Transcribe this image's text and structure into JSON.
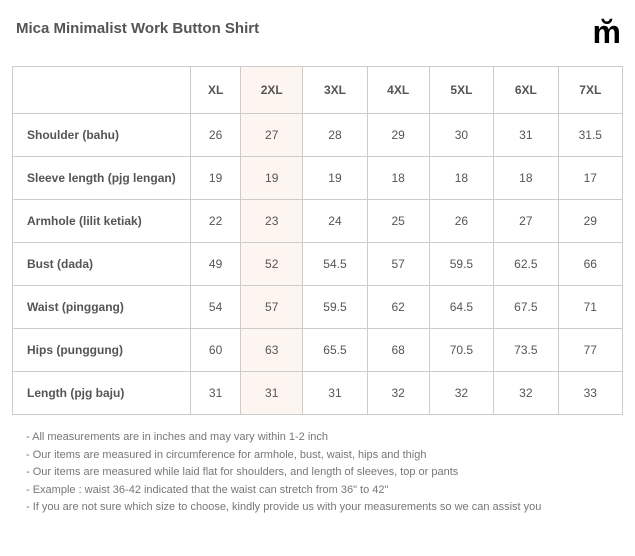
{
  "title": "Mica Minimalist Work Button Shirt",
  "logo": "m̆",
  "table": {
    "sizes": [
      "XL",
      "2XL",
      "3XL",
      "4XL",
      "5XL",
      "6XL",
      "7XL"
    ],
    "highlight_column_index": 1,
    "rows": [
      {
        "label": "Shoulder (bahu)",
        "values": [
          "26",
          "27",
          "28",
          "29",
          "30",
          "31",
          "31.5"
        ]
      },
      {
        "label": "Sleeve length (pjg lengan)",
        "values": [
          "19",
          "19",
          "19",
          "18",
          "18",
          "18",
          "17"
        ]
      },
      {
        "label": "Armhole (lilit ketiak)",
        "values": [
          "22",
          "23",
          "24",
          "25",
          "26",
          "27",
          "29"
        ]
      },
      {
        "label": "Bust (dada)",
        "values": [
          "49",
          "52",
          "54.5",
          "57",
          "59.5",
          "62.5",
          "66"
        ]
      },
      {
        "label": "Waist (pinggang)",
        "values": [
          "54",
          "57",
          "59.5",
          "62",
          "64.5",
          "67.5",
          "71"
        ]
      },
      {
        "label": "Hips (punggung)",
        "values": [
          "60",
          "63",
          "65.5",
          "68",
          "70.5",
          "73.5",
          "77"
        ]
      },
      {
        "label": "Length (pjg baju)",
        "values": [
          "31",
          "31",
          "31",
          "32",
          "32",
          "32",
          "33"
        ]
      }
    ]
  },
  "notes": [
    "- All measurements are in inches and may vary within 1-2 inch",
    "- Our items are measured in circumference for armhole, bust, waist, hips and thigh",
    "- Our items are measured while laid flat for shoulders, and length of sleeves, top or pants",
    "- Example : waist 36-42 indicated that the waist can stretch from 36\" to 42\"",
    "- If you are not sure which size to choose, kindly provide us with your measurements so we can assist you"
  ]
}
